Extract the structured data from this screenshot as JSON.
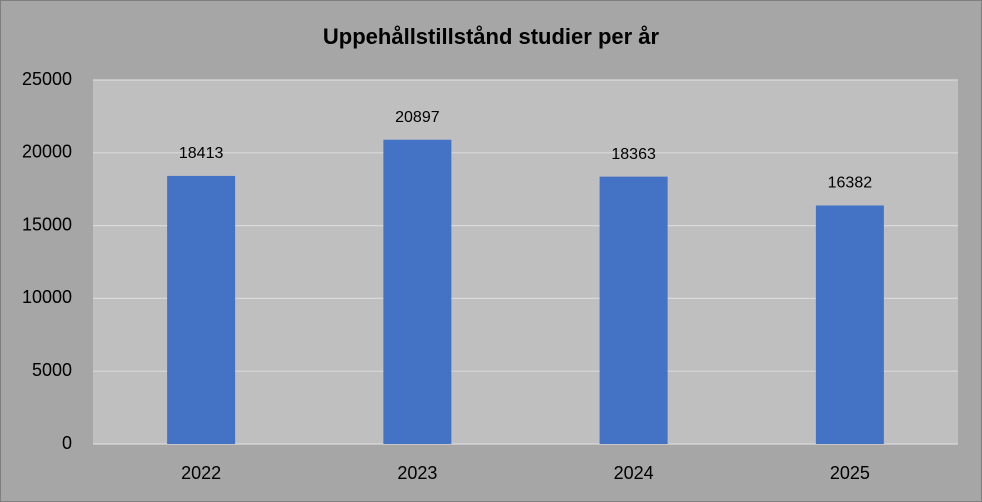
{
  "chart_data": {
    "type": "bar",
    "title": "Uppehållstillstånd studier per år",
    "categories": [
      "2022",
      "2023",
      "2024",
      "2025"
    ],
    "values": [
      18413,
      20897,
      18363,
      16382
    ],
    "color": "#4472c4",
    "ylim": [
      0,
      25000
    ],
    "yticks": [
      0,
      5000,
      10000,
      15000,
      20000,
      25000
    ],
    "grid": true
  }
}
